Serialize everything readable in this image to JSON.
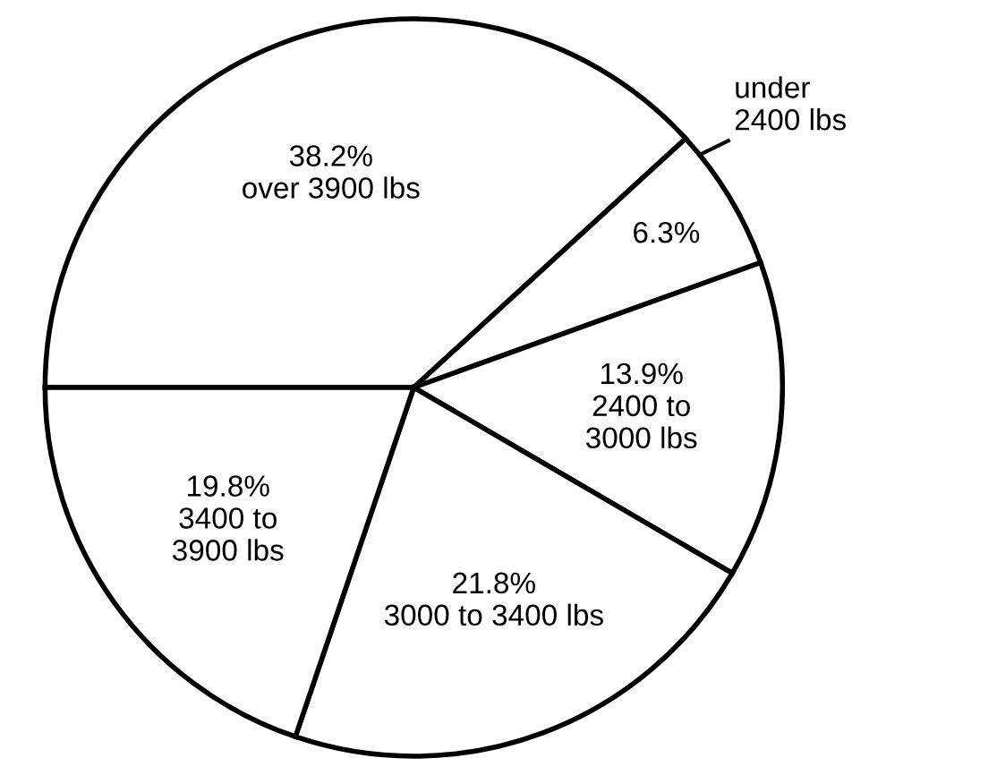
{
  "chart_data": {
    "type": "pie",
    "categories": [
      "over 3900 lbs",
      "under\n2400 lbs",
      "2400 to\n3000 lbs",
      "3000 to 3400 lbs",
      "3400 to\n3900 lbs"
    ],
    "values": [
      38.2,
      6.3,
      13.9,
      21.8,
      19.8
    ],
    "colors": [
      "#ffffff",
      "#ffffff",
      "#ffffff",
      "#ffffff",
      "#ffffff"
    ],
    "value_labels": [
      "38.2%",
      "6.3%",
      "13.9%",
      "21.8%",
      "19.8%"
    ]
  }
}
